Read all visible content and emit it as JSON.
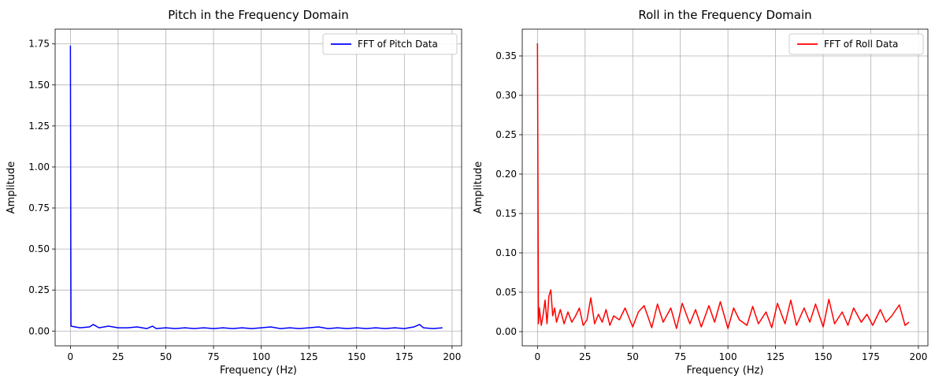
{
  "chart_data": [
    {
      "type": "line",
      "title": "Pitch in the Frequency Domain",
      "xlabel": "Frequency (Hz)",
      "ylabel": "Amplitude",
      "xlim": [
        -8,
        205
      ],
      "ylim": [
        -0.09,
        1.84
      ],
      "xticks": [
        0,
        25,
        50,
        75,
        100,
        125,
        150,
        175,
        200
      ],
      "xtick_labels": [
        "0",
        "25",
        "50",
        "75",
        "100",
        "125",
        "150",
        "175",
        "200"
      ],
      "yticks": [
        0.0,
        0.25,
        0.5,
        0.75,
        1.0,
        1.25,
        1.5,
        1.75
      ],
      "ytick_labels": [
        "0.00",
        "0.25",
        "0.50",
        "0.75",
        "1.00",
        "1.25",
        "1.50",
        "1.75"
      ],
      "grid": true,
      "legend_position": "upper-right",
      "series": [
        {
          "name": "FFT of Pitch Data",
          "color": "#0000ff",
          "x": [
            0,
            0.3,
            5,
            10,
            12,
            15,
            20,
            25,
            30,
            35,
            40,
            43,
            45,
            50,
            55,
            60,
            65,
            70,
            75,
            80,
            85,
            90,
            95,
            100,
            105,
            110,
            115,
            120,
            125,
            130,
            135,
            140,
            145,
            150,
            155,
            160,
            165,
            170,
            175,
            180,
            183,
            185,
            190,
            195
          ],
          "y": [
            1.74,
            0.03,
            0.02,
            0.025,
            0.04,
            0.02,
            0.03,
            0.02,
            0.02,
            0.025,
            0.015,
            0.03,
            0.015,
            0.02,
            0.015,
            0.02,
            0.015,
            0.02,
            0.015,
            0.02,
            0.015,
            0.02,
            0.015,
            0.02,
            0.025,
            0.015,
            0.02,
            0.015,
            0.02,
            0.025,
            0.015,
            0.02,
            0.015,
            0.02,
            0.015,
            0.02,
            0.015,
            0.02,
            0.015,
            0.025,
            0.04,
            0.02,
            0.015,
            0.02
          ]
        }
      ]
    },
    {
      "type": "line",
      "title": "Roll in the Frequency Domain",
      "xlabel": "Frequency (Hz)",
      "ylabel": "Amplitude",
      "xlim": [
        -8,
        205
      ],
      "ylim": [
        -0.018,
        0.384
      ],
      "xticks": [
        0,
        25,
        50,
        75,
        100,
        125,
        150,
        175,
        200
      ],
      "xtick_labels": [
        "0",
        "25",
        "50",
        "75",
        "100",
        "125",
        "150",
        "175",
        "200"
      ],
      "yticks": [
        0.0,
        0.05,
        0.1,
        0.15,
        0.2,
        0.25,
        0.3,
        0.35
      ],
      "ytick_labels": [
        "0.00",
        "0.05",
        "0.10",
        "0.15",
        "0.20",
        "0.25",
        "0.30",
        "0.35"
      ],
      "grid": true,
      "legend_position": "upper-right",
      "series": [
        {
          "name": "FFT of Roll Data",
          "color": "#ff0000",
          "x": [
            0,
            0.5,
            1,
            2,
            3,
            4,
            5,
            6,
            7,
            8,
            9,
            10,
            12,
            14,
            16,
            18,
            20,
            22,
            24,
            26,
            28,
            30,
            32,
            34,
            36,
            38,
            40,
            43,
            46,
            50,
            53,
            56,
            60,
            63,
            66,
            70,
            73,
            76,
            80,
            83,
            86,
            90,
            93,
            96,
            100,
            103,
            106,
            110,
            113,
            116,
            120,
            123,
            126,
            130,
            133,
            136,
            140,
            143,
            146,
            150,
            153,
            156,
            160,
            163,
            166,
            170,
            173,
            176,
            180,
            183,
            186,
            190,
            193,
            195
          ],
          "y": [
            0.366,
            0.01,
            0.03,
            0.008,
            0.022,
            0.04,
            0.01,
            0.045,
            0.053,
            0.02,
            0.03,
            0.012,
            0.028,
            0.01,
            0.025,
            0.012,
            0.02,
            0.03,
            0.008,
            0.015,
            0.043,
            0.01,
            0.022,
            0.012,
            0.028,
            0.008,
            0.02,
            0.015,
            0.03,
            0.006,
            0.025,
            0.033,
            0.005,
            0.035,
            0.012,
            0.03,
            0.004,
            0.036,
            0.01,
            0.028,
            0.006,
            0.033,
            0.012,
            0.038,
            0.004,
            0.03,
            0.015,
            0.008,
            0.032,
            0.01,
            0.025,
            0.005,
            0.036,
            0.01,
            0.04,
            0.008,
            0.03,
            0.012,
            0.035,
            0.006,
            0.041,
            0.01,
            0.025,
            0.008,
            0.03,
            0.012,
            0.022,
            0.008,
            0.028,
            0.012,
            0.02,
            0.034,
            0.008,
            0.012
          ]
        }
      ]
    }
  ]
}
